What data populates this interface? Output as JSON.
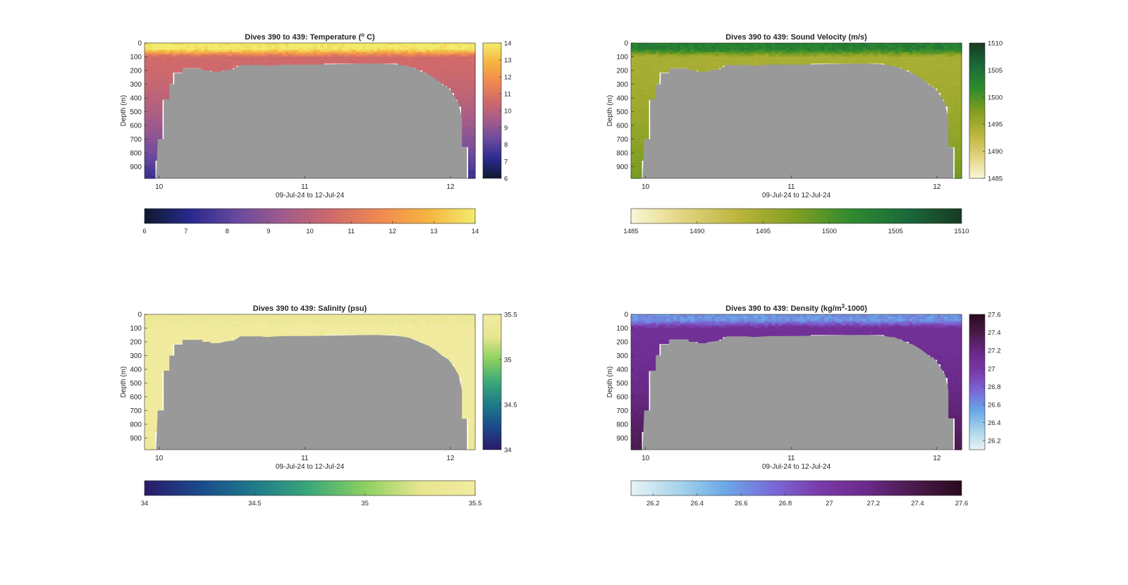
{
  "chart_data": [
    {
      "type": "heatmap",
      "title": "Dives 390 to 439: Temperature (° C)",
      "title_parts": {
        "pre": "Dives 390 to 439: Temperature (",
        "sup": "o",
        "post": " C)"
      },
      "xlabel": "09-Jul-24 to 12-Jul-24",
      "ylabel": "Depth (m)",
      "x_ticks": [
        "10",
        "11",
        "12"
      ],
      "y_ticks": [
        "0",
        "100",
        "200",
        "300",
        "400",
        "500",
        "600",
        "700",
        "800",
        "900"
      ],
      "xlim": [
        9.9,
        12.17
      ],
      "ylim": [
        0,
        985
      ],
      "colorbar": {
        "range": [
          6,
          14
        ],
        "ticks": [
          "6",
          "7",
          "8",
          "9",
          "10",
          "11",
          "12",
          "13",
          "14"
        ],
        "stops": [
          "#0d1a2e",
          "#2a2a8e",
          "#6a4a9e",
          "#a45c8a",
          "#d06a6a",
          "#f08a50",
          "#f5b440",
          "#f2ec6c"
        ]
      },
      "profile": {
        "surface": 14.0,
        "mixed_to_m": 45,
        "thermocline_to_m": 100,
        "mid": 10.6,
        "deep": 7.4
      }
    },
    {
      "type": "heatmap",
      "title": "Dives 390 to 439: Sound Velocity (m/s)",
      "xlabel": "09-Jul-24 to 12-Jul-24",
      "ylabel": "Depth (m)",
      "x_ticks": [
        "10",
        "11",
        "12"
      ],
      "y_ticks": [
        "0",
        "100",
        "200",
        "300",
        "400",
        "500",
        "600",
        "700",
        "800",
        "900"
      ],
      "xlim": [
        9.9,
        12.17
      ],
      "ylim": [
        0,
        985
      ],
      "colorbar": {
        "range": [
          1485,
          1510
        ],
        "ticks": [
          "1485",
          "1490",
          "1495",
          "1500",
          "1505",
          "1510"
        ],
        "stops": [
          "#fbf7d6",
          "#e0d27a",
          "#b8b43a",
          "#7f9e22",
          "#2f8a2e",
          "#1a6a3a",
          "#173a23"
        ]
      },
      "profile": {
        "surface": 1503,
        "mixed_to_m": 45,
        "thermocline_to_m": 100,
        "mid": 1494.5,
        "deep": 1498
      }
    },
    {
      "type": "heatmap",
      "title": "Dives 390 to 439: Salinity (psu)",
      "xlabel": "09-Jul-24 to 12-Jul-24",
      "ylabel": "Depth (m)",
      "x_ticks": [
        "10",
        "11",
        "12"
      ],
      "y_ticks": [
        "0",
        "100",
        "200",
        "300",
        "400",
        "500",
        "600",
        "700",
        "800",
        "900"
      ],
      "xlim": [
        9.9,
        12.17
      ],
      "ylim": [
        0,
        985
      ],
      "colorbar": {
        "range": [
          34,
          35.5
        ],
        "ticks": [
          "34",
          "34.5",
          "35",
          "35.5"
        ],
        "stops": [
          "#2a1a6a",
          "#1a4a8a",
          "#1f7a8a",
          "#3aa878",
          "#8cd060",
          "#e8e690",
          "#f2eba0"
        ]
      },
      "profile": {
        "surface": 35.35,
        "mixed_to_m": 45,
        "thermocline_to_m": 100,
        "mid": 35.48,
        "deep": 35.42
      }
    },
    {
      "type": "heatmap",
      "title": "Dives 390 to 439: Density (kg/m³-1000)",
      "title_parts": {
        "pre": "Dives 390 to 439: Density (kg/m",
        "sup": "3",
        "post": "-1000)"
      },
      "xlabel": "09-Jul-24 to 12-Jul-24",
      "ylabel": "Depth (m)",
      "x_ticks": [
        "10",
        "11",
        "12"
      ],
      "y_ticks": [
        "0",
        "100",
        "200",
        "300",
        "400",
        "500",
        "600",
        "700",
        "800",
        "900"
      ],
      "xlim": [
        9.9,
        12.17
      ],
      "ylim": [
        0,
        985
      ],
      "colorbar": {
        "range": [
          26.1,
          27.6
        ],
        "ticks": [
          "26.2",
          "26.4",
          "26.6",
          "26.8",
          "27",
          "27.2",
          "27.4",
          "27.6"
        ],
        "stops": [
          "#e8f4f4",
          "#a8d4ec",
          "#6aa8e6",
          "#7a6ad8",
          "#7a3aa8",
          "#6a2a8a",
          "#4a1a4a",
          "#2a0a1e"
        ]
      },
      "profile": {
        "surface": 26.6,
        "mixed_to_m": 45,
        "thermocline_to_m": 100,
        "mid": 27.08,
        "deep": 27.38
      }
    }
  ],
  "colors": {
    "no_data": "#999999",
    "axis": "#262626",
    "background": "#ffffff"
  }
}
